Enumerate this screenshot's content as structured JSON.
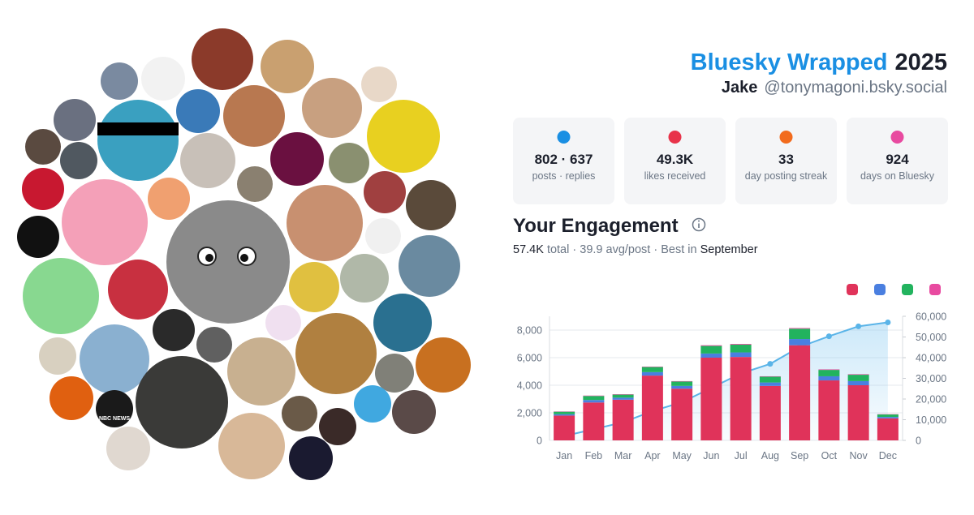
{
  "header": {
    "title": "Bluesky Wrapped",
    "year": "2025",
    "name": "Jake",
    "handle": "@tonymagoni.bsky.social"
  },
  "avatar_texts": {
    "news_logo": "NBC NEWS"
  },
  "stats": [
    {
      "value": "802 · 637",
      "label": "posts · replies",
      "color": "#1a8fe3"
    },
    {
      "value": "49.3K",
      "label": "likes received",
      "color": "#e8334a"
    },
    {
      "value": "33",
      "label": "day posting streak",
      "color": "#f26b1d"
    },
    {
      "value": "924",
      "label": "days on Bluesky",
      "color": "#e84aa0"
    }
  ],
  "engagement": {
    "title": "Your Engagement",
    "total": "57.4K",
    "total_label": "total",
    "separator": "·",
    "average": "39.9 avg/post",
    "best_label": "Best in",
    "best_month": "September"
  },
  "chart_data": {
    "type": "bar",
    "stacked": true,
    "categories": [
      "Jan",
      "Feb",
      "Mar",
      "Apr",
      "May",
      "Jun",
      "Jul",
      "Aug",
      "Sep",
      "Oct",
      "Nov",
      "Dec"
    ],
    "series": [
      {
        "color": "#e0335a",
        "values": [
          1800,
          2750,
          2950,
          4700,
          3750,
          6000,
          6050,
          3950,
          6900,
          4350,
          4000,
          1600
        ]
      },
      {
        "color": "#4a7fe0",
        "values": [
          100,
          180,
          150,
          250,
          200,
          300,
          330,
          250,
          450,
          300,
          300,
          100
        ]
      },
      {
        "color": "#22b35e",
        "values": [
          180,
          290,
          220,
          370,
          320,
          550,
          570,
          420,
          750,
          460,
          460,
          180
        ]
      },
      {
        "color": "#e84aa0",
        "values": [
          20,
          30,
          30,
          30,
          30,
          50,
          50,
          30,
          50,
          40,
          40,
          20
        ]
      },
      {
        "type": "line",
        "axis": "y2",
        "color": "#5ab4e8",
        "values": [
          2100,
          5400,
          8750,
          14150,
          18450,
          25350,
          32350,
          37000,
          45150,
          50350,
          55150,
          57050
        ]
      }
    ],
    "ylim": [
      0,
      9000
    ],
    "yticks": [
      0,
      {
        "value": 2000,
        "label": "2,000"
      },
      {
        "value": 4000,
        "label": "4,000"
      },
      {
        "value": 6000,
        "label": "6,000"
      },
      {
        "value": 8000,
        "label": "8,000"
      }
    ],
    "y2lim": [
      0,
      60000
    ],
    "y2ticks": [
      0,
      {
        "value": 10000,
        "label": "10,000"
      },
      {
        "value": 20000,
        "label": "20,000"
      },
      {
        "value": 30000,
        "label": "30,000"
      },
      {
        "value": 40000,
        "label": "40,000"
      },
      {
        "value": 50000,
        "label": "50,000"
      },
      {
        "value": 60000,
        "label": "60,000"
      }
    ],
    "grid": true
  }
}
